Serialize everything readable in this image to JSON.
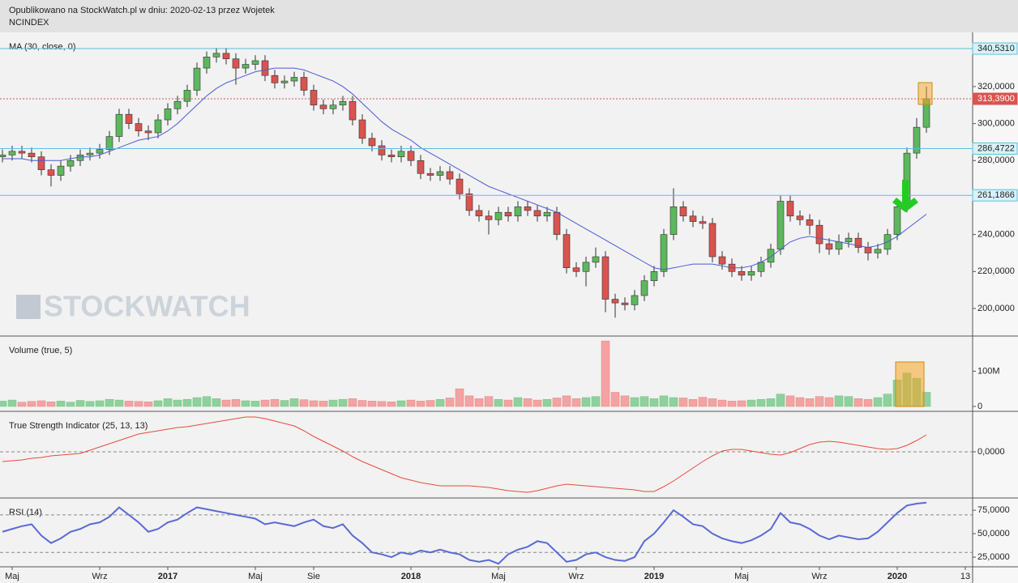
{
  "header": {
    "published": "Opublikowano na StockWatch.pl w dniu: 2020-02-13 przez Wojetek",
    "symbol": "NCINDEX"
  },
  "watermark": "STOCKWATCH",
  "chart_data": [
    {
      "type": "candlestick",
      "title": "MA (30, close, 0)",
      "categories": [
        null,
        "Maj",
        null,
        null,
        null,
        null,
        null,
        null,
        null,
        null,
        "Wrz",
        null,
        null,
        null,
        null,
        null,
        null,
        "2017",
        null,
        null,
        null,
        null,
        null,
        null,
        null,
        null,
        "Maj",
        null,
        null,
        null,
        null,
        null,
        "Sie",
        null,
        null,
        null,
        null,
        null,
        null,
        null,
        null,
        null,
        "2018",
        null,
        null,
        null,
        null,
        null,
        null,
        null,
        null,
        "Maj",
        null,
        null,
        null,
        null,
        null,
        null,
        null,
        "Wrz",
        null,
        null,
        null,
        null,
        null,
        null,
        null,
        "2019",
        null,
        null,
        null,
        null,
        null,
        null,
        null,
        null,
        "Maj",
        null,
        null,
        null,
        null,
        null,
        null,
        null,
        "Wrz",
        null,
        null,
        null,
        null,
        null,
        null,
        null,
        "2020",
        null,
        null,
        null,
        null,
        null,
        null,
        "13"
      ],
      "open": [
        282,
        283,
        285,
        284,
        282,
        275,
        272,
        277,
        280,
        283,
        284,
        286,
        293,
        305,
        300,
        296,
        295,
        302,
        308,
        312,
        318,
        330,
        336,
        338,
        335,
        330,
        332,
        334,
        326,
        322,
        323,
        325,
        318,
        310,
        308,
        310,
        312,
        302,
        292,
        288,
        283,
        282,
        285,
        280,
        273,
        272,
        274,
        270,
        262,
        253,
        250,
        248,
        252,
        250,
        255,
        253,
        250,
        252,
        240,
        222,
        220,
        225,
        228,
        205,
        203,
        202,
        207,
        215,
        220,
        240,
        255,
        250,
        247,
        246,
        228,
        224,
        220,
        218,
        220,
        225,
        232,
        258,
        250,
        248,
        245,
        235,
        232,
        236,
        238,
        233,
        230,
        232,
        240,
        255,
        284,
        298,
        null,
        null,
        null,
        null
      ],
      "high": [
        286,
        288,
        288,
        287,
        285,
        278,
        280,
        283,
        286,
        287,
        289,
        296,
        308,
        308,
        303,
        299,
        305,
        311,
        315,
        321,
        333,
        339,
        341,
        341,
        338,
        335,
        337,
        337,
        329,
        326,
        328,
        328,
        321,
        313,
        313,
        315,
        315,
        305,
        295,
        291,
        286,
        288,
        288,
        283,
        276,
        277,
        277,
        273,
        265,
        256,
        253,
        255,
        255,
        258,
        258,
        256,
        255,
        255,
        243,
        225,
        228,
        233,
        231,
        208,
        206,
        210,
        218,
        223,
        243,
        265,
        258,
        253,
        250,
        249,
        231,
        227,
        223,
        223,
        228,
        235,
        261,
        261,
        253,
        251,
        248,
        238,
        240,
        241,
        241,
        236,
        235,
        243,
        258,
        287,
        303,
        320,
        null,
        null,
        null,
        null
      ],
      "low": [
        279,
        280,
        281,
        279,
        272,
        266,
        269,
        274,
        277,
        280,
        281,
        283,
        290,
        297,
        293,
        291,
        292,
        299,
        305,
        309,
        315,
        327,
        333,
        332,
        321,
        327,
        329,
        323,
        319,
        319,
        320,
        315,
        307,
        305,
        305,
        307,
        299,
        289,
        285,
        280,
        279,
        279,
        277,
        270,
        269,
        269,
        267,
        259,
        250,
        247,
        240,
        245,
        247,
        247,
        250,
        247,
        247,
        237,
        219,
        217,
        212,
        222,
        198,
        195,
        199,
        199,
        204,
        212,
        217,
        237,
        247,
        244,
        243,
        225,
        221,
        217,
        215,
        215,
        217,
        222,
        229,
        247,
        245,
        240,
        230,
        229,
        229,
        233,
        230,
        226,
        227,
        229,
        237,
        252,
        281,
        295,
        null,
        null,
        null,
        null
      ],
      "close": [
        283,
        285,
        284,
        282,
        275,
        272,
        277,
        280,
        283,
        284,
        286,
        293,
        305,
        300,
        296,
        295,
        302,
        308,
        312,
        318,
        330,
        336,
        338,
        335,
        330,
        332,
        334,
        326,
        322,
        323,
        325,
        318,
        310,
        308,
        310,
        312,
        302,
        292,
        288,
        283,
        282,
        285,
        280,
        273,
        272,
        274,
        270,
        262,
        253,
        250,
        248,
        252,
        250,
        255,
        253,
        250,
        252,
        240,
        222,
        220,
        225,
        228,
        205,
        203,
        202,
        207,
        215,
        220,
        240,
        255,
        250,
        247,
        246,
        228,
        224,
        220,
        218,
        220,
        225,
        232,
        258,
        250,
        248,
        245,
        235,
        232,
        236,
        238,
        233,
        230,
        232,
        240,
        255,
        284,
        298,
        313.39,
        null,
        null,
        null,
        null
      ],
      "up_color": "#5cb85c",
      "down_color": "#d9534f",
      "ma": {
        "color": "#4a5bd4",
        "values": [
          281,
          281,
          281,
          280,
          280,
          280,
          280,
          281,
          282,
          282,
          283,
          285,
          287,
          289,
          291,
          292,
          293,
          296,
          300,
          305,
          310,
          315,
          319,
          322,
          324,
          326,
          328,
          329,
          330,
          330,
          330,
          329,
          327,
          325,
          323,
          320,
          316,
          311,
          306,
          301,
          297,
          294,
          291,
          287,
          284,
          281,
          278,
          275,
          272,
          269,
          266,
          264,
          262,
          260,
          258,
          256,
          254,
          252,
          249,
          246,
          243,
          240,
          237,
          234,
          231,
          228,
          225,
          222,
          221,
          222,
          223,
          224,
          224,
          224,
          223,
          222,
          222,
          223,
          225,
          228,
          232,
          236,
          238,
          239,
          238,
          237,
          236,
          235,
          234,
          233,
          234,
          236,
          239,
          243,
          247,
          251,
          null,
          null,
          null,
          null
        ]
      },
      "ylim": [
        185.1,
        349.3
      ],
      "yticks": [
        {
          "value": 200,
          "label": "200,0000"
        },
        {
          "value": 220,
          "label": "220,0000"
        },
        {
          "value": 240,
          "label": "240,0000"
        },
        {
          "value": 260,
          "label": "260,0000"
        },
        {
          "value": 280,
          "label": "280,0000"
        },
        {
          "value": 300,
          "label": "300,0000"
        },
        {
          "value": 320,
          "label": "320,0000"
        }
      ],
      "levels": [
        {
          "value": 340.531,
          "label": "340,5310",
          "color": "#5bc0de"
        },
        {
          "value": 286.4722,
          "label": "286,4722",
          "color": "#5bc0de"
        },
        {
          "value": 261.1866,
          "label": "261,1866",
          "color": "#5bc0de"
        },
        {
          "value": 313.39,
          "label": "313,3900",
          "color": "#d9534f"
        }
      ]
    },
    {
      "type": "bar",
      "title": "Volume (true, 5)",
      "values": [
        15000000,
        18000000,
        12000000,
        14000000,
        16000000,
        13000000,
        15000000,
        12000000,
        17000000,
        14000000,
        16000000,
        20000000,
        18000000,
        15000000,
        14000000,
        13000000,
        16000000,
        22000000,
        18000000,
        20000000,
        25000000,
        28000000,
        22000000,
        18000000,
        20000000,
        16000000,
        15000000,
        18000000,
        20000000,
        17000000,
        22000000,
        19000000,
        16000000,
        15000000,
        18000000,
        20000000,
        22000000,
        17000000,
        15000000,
        14000000,
        13000000,
        16000000,
        18000000,
        15000000,
        17000000,
        20000000,
        24000000,
        50000000,
        30000000,
        22000000,
        28000000,
        20000000,
        18000000,
        25000000,
        22000000,
        18000000,
        20000000,
        24000000,
        30000000,
        22000000,
        25000000,
        28000000,
        186000000,
        40000000,
        30000000,
        25000000,
        28000000,
        22000000,
        30000000,
        25000000,
        24000000,
        20000000,
        26000000,
        22000000,
        18000000,
        15000000,
        16000000,
        18000000,
        20000000,
        22000000,
        35000000,
        30000000,
        25000000,
        22000000,
        28000000,
        25000000,
        30000000,
        28000000,
        22000000,
        20000000,
        25000000,
        35000000,
        75000000,
        95000000,
        80000000,
        40000000,
        null,
        null,
        null,
        null
      ],
      "up_color": "#8fd19e",
      "down_color": "#f4a3a3",
      "ylim": [
        -14000000,
        200000000
      ],
      "yticks": [
        {
          "value": 0,
          "label": "0"
        },
        {
          "value": 100000000,
          "label": "100M"
        }
      ]
    },
    {
      "type": "line",
      "title": "True Strength Indicator (25, 13, 13)",
      "color": "#e74c3c",
      "values": [
        -12,
        -11,
        -10,
        -8,
        -7,
        -5,
        -4,
        -3,
        -2,
        2,
        6,
        10,
        14,
        18,
        22,
        24,
        26,
        28,
        30,
        31,
        33,
        35,
        37,
        39,
        41,
        43,
        43,
        41,
        38,
        35,
        32,
        26,
        19,
        13,
        7,
        1,
        -6,
        -12,
        -17,
        -22,
        -27,
        -32,
        -35,
        -38,
        -40,
        -42,
        -42,
        -42,
        -42,
        -43,
        -44,
        -46,
        -48,
        -49,
        -50,
        -48,
        -45,
        -42,
        -40,
        -41,
        -42,
        -43,
        -44,
        -45,
        -46,
        -47,
        -49,
        -49,
        -43,
        -36,
        -28,
        -20,
        -12,
        -5,
        1,
        3,
        3,
        1,
        -1,
        -3,
        -4,
        -1,
        4,
        9,
        12,
        13,
        12,
        10,
        8,
        6,
        4,
        3,
        4,
        8,
        14,
        21,
        null,
        null,
        null,
        null
      ],
      "ylim": [
        -57,
        50
      ],
      "yticks": [
        {
          "value": 0,
          "label": "0,0000"
        }
      ],
      "hlines": [
        0
      ]
    },
    {
      "type": "line",
      "title": "RSI (14)",
      "color": "#5a6ad4",
      "values": [
        52,
        55,
        58,
        60,
        48,
        40,
        45,
        52,
        55,
        60,
        62,
        68,
        78,
        70,
        62,
        52,
        55,
        62,
        65,
        72,
        78,
        76,
        74,
        72,
        70,
        68,
        66,
        60,
        62,
        60,
        58,
        62,
        65,
        58,
        56,
        60,
        48,
        40,
        30,
        28,
        25,
        30,
        28,
        32,
        30,
        33,
        30,
        28,
        22,
        20,
        22,
        18,
        28,
        33,
        36,
        42,
        40,
        30,
        20,
        22,
        28,
        30,
        25,
        22,
        21,
        25,
        42,
        50,
        62,
        75,
        68,
        60,
        58,
        50,
        45,
        42,
        40,
        43,
        48,
        55,
        72,
        62,
        60,
        55,
        48,
        44,
        48,
        46,
        44,
        45,
        52,
        62,
        72,
        80,
        82,
        83,
        null,
        null,
        null,
        null
      ],
      "ylim": [
        14.7,
        88.0
      ],
      "yticks": [
        {
          "value": 25,
          "label": "25,0000"
        },
        {
          "value": 50,
          "label": "50,0000"
        },
        {
          "value": 75,
          "label": "75,0000"
        }
      ],
      "hlines": [
        70,
        30
      ]
    }
  ]
}
